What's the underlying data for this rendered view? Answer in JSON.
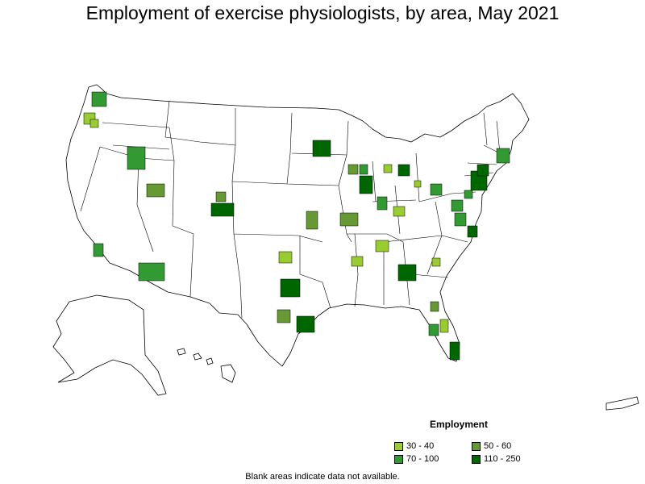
{
  "title": "Employment of exercise physiologists, by area, May 2021",
  "legend": {
    "heading": "Employment",
    "items": [
      {
        "label": "30 - 40",
        "color": "#99cc33"
      },
      {
        "label": "50 - 60",
        "color": "#669933"
      },
      {
        "label": "70 - 100",
        "color": "#339933"
      },
      {
        "label": "110 - 250",
        "color": "#006600"
      }
    ]
  },
  "footnote": "Blank areas indicate data not available.",
  "colors": {
    "border": "#000000",
    "background": "#ffffff"
  }
}
